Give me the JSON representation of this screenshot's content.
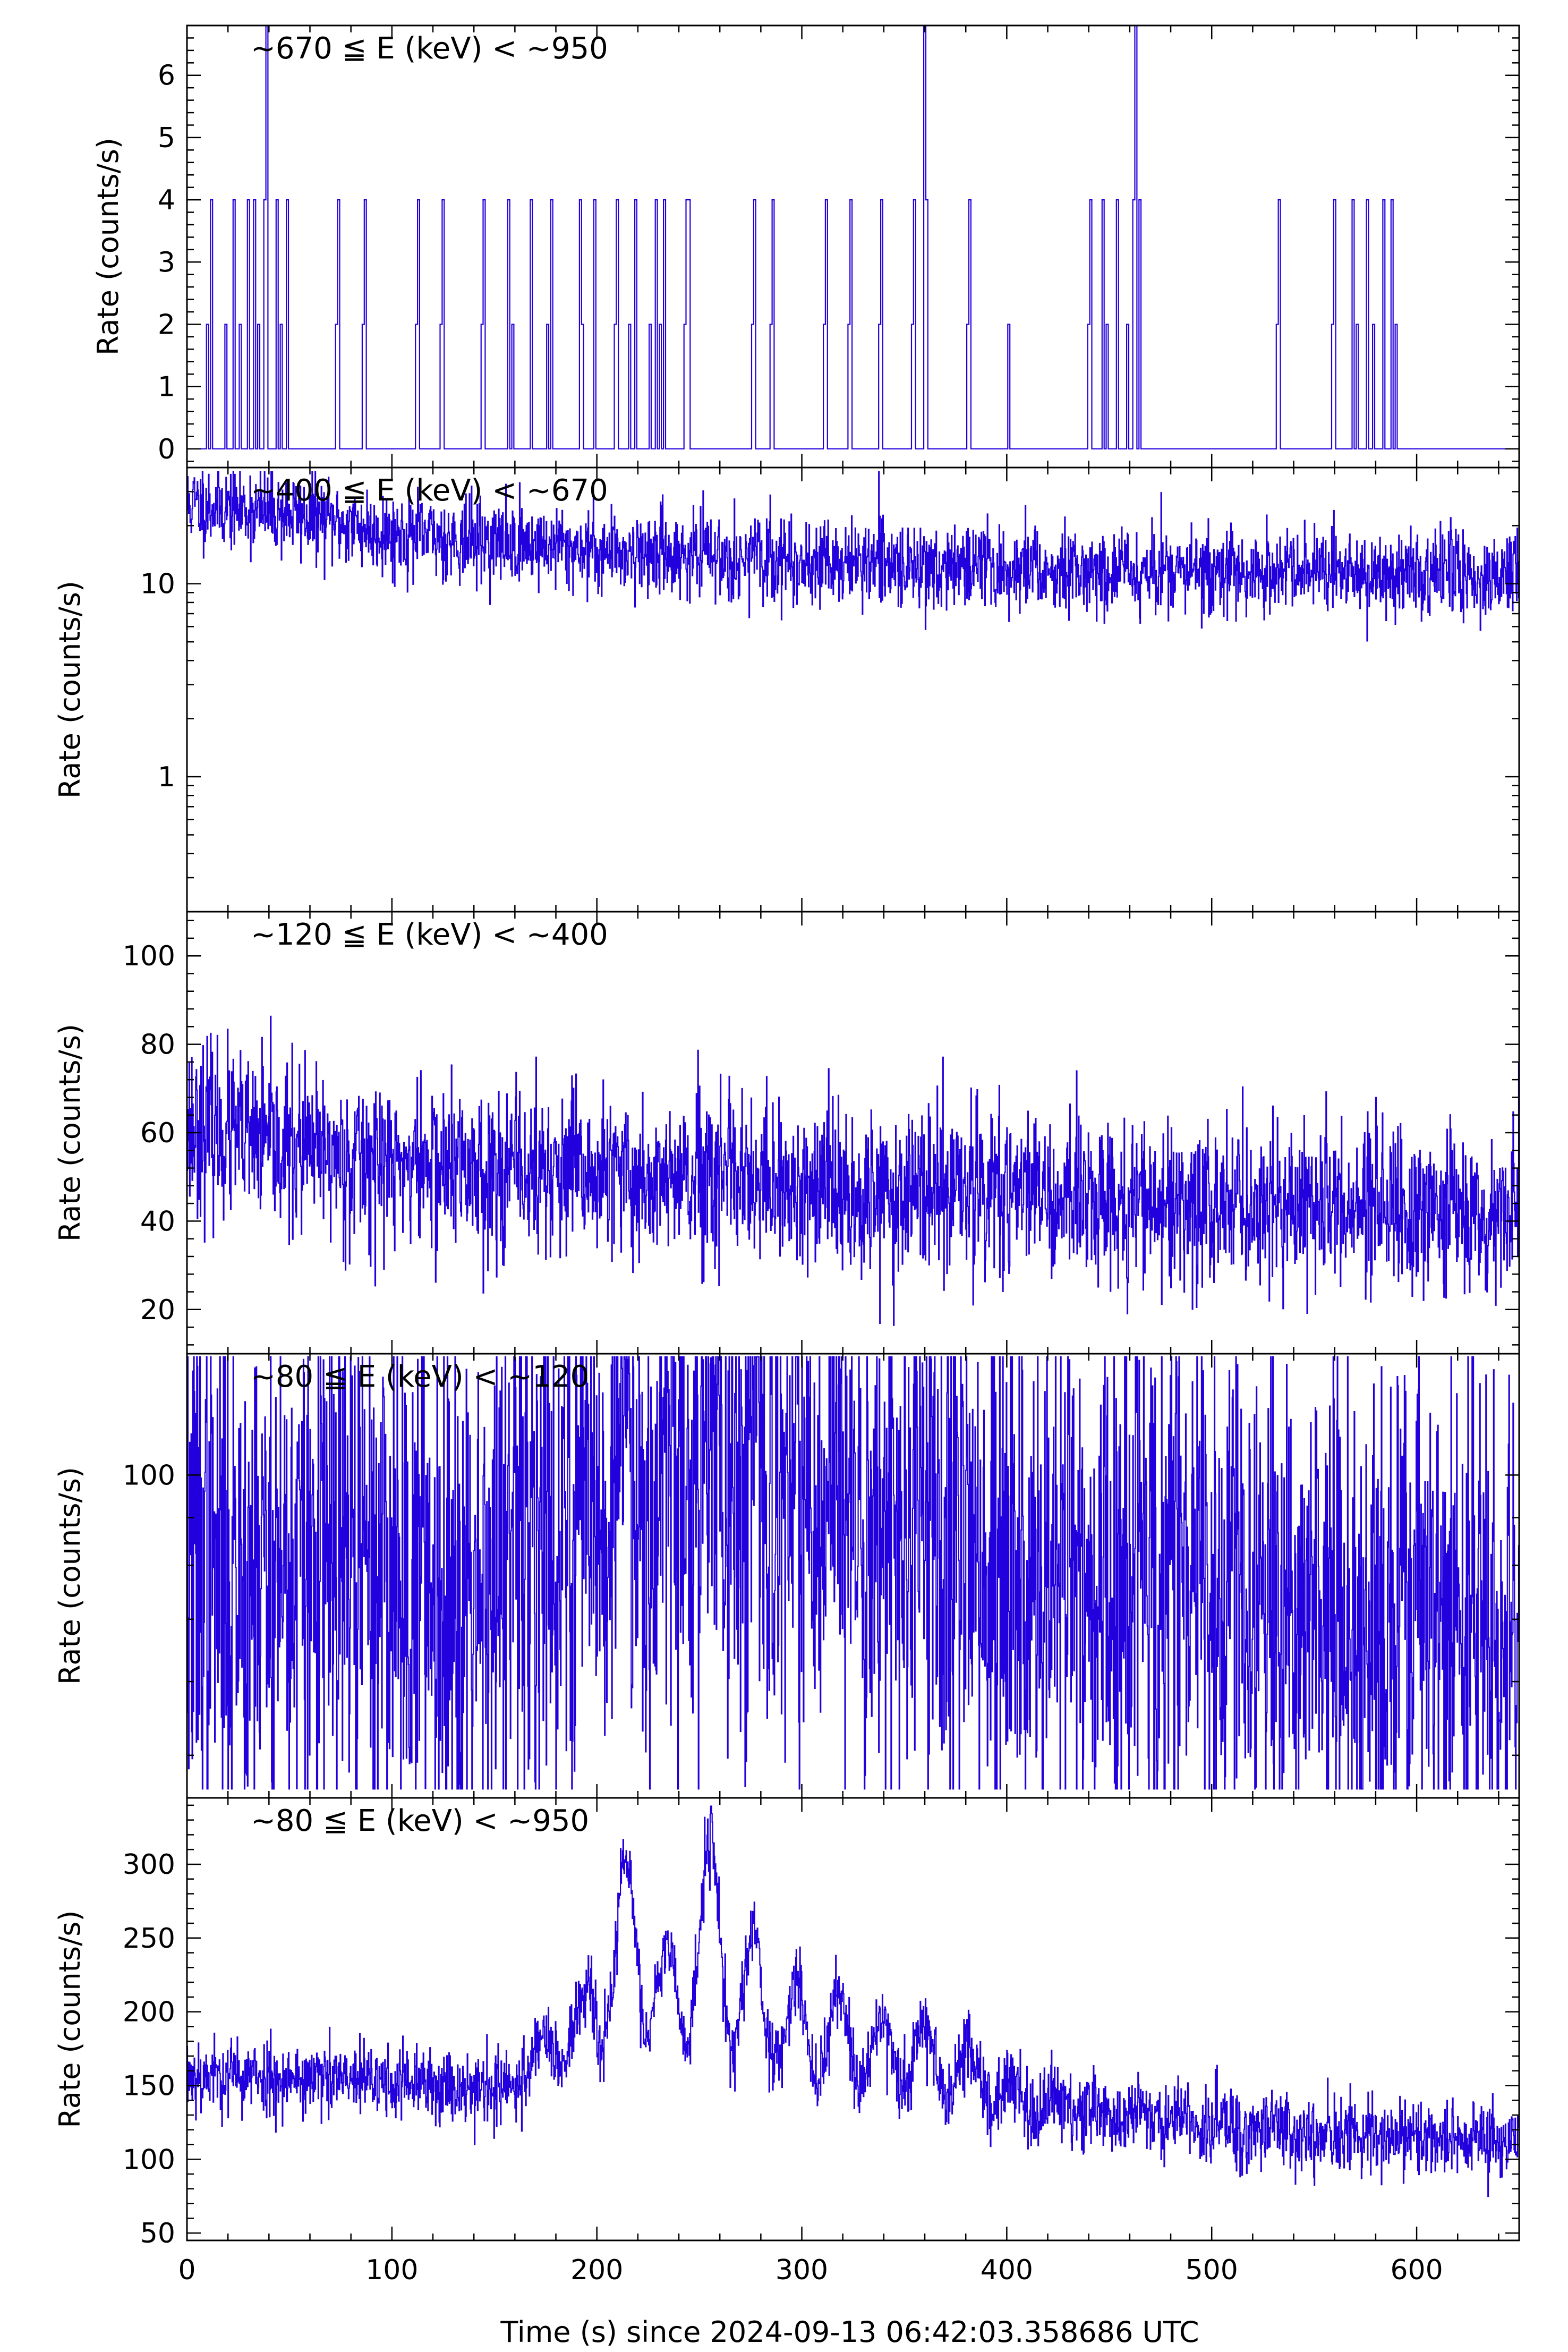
{
  "figure": {
    "xlabel": "Time (s) since 2024-09-13 06:42:03.358686 UTC",
    "x_tick_labels": [
      "0",
      "100",
      "200",
      "300",
      "400",
      "500",
      "600"
    ],
    "line_color": "#2200dd",
    "frame_color": "#000000"
  },
  "chart_data": [
    {
      "type": "line",
      "title": "~670 ≦ E (keV) < ~950",
      "ylabel": "Rate (counts/s)",
      "yscale": "linear",
      "ylim": [
        -0.3,
        6.8
      ],
      "xlim": [
        0,
        650
      ],
      "y_tick_labels": [
        "0",
        "1",
        "2",
        "3",
        "4",
        "5",
        "6"
      ],
      "y_tick_values": [
        0,
        1,
        2,
        3,
        4,
        5,
        6
      ],
      "signal": {
        "kind": "sparse",
        "spikes": [
          [
            10,
            2
          ],
          [
            12,
            4
          ],
          [
            19,
            2
          ],
          [
            23,
            4
          ],
          [
            26,
            2
          ],
          [
            30,
            4
          ],
          [
            33,
            4
          ],
          [
            35,
            2
          ],
          [
            38,
            4
          ],
          [
            39,
            6.8
          ],
          [
            44,
            4
          ],
          [
            46,
            2
          ],
          [
            49,
            4
          ],
          [
            73,
            2
          ],
          [
            74,
            4
          ],
          [
            86,
            2
          ],
          [
            87,
            4
          ],
          [
            112,
            2
          ],
          [
            113,
            4
          ],
          [
            124,
            2
          ],
          [
            125,
            4
          ],
          [
            144,
            2
          ],
          [
            145,
            4
          ],
          [
            157,
            4
          ],
          [
            159,
            2
          ],
          [
            168,
            4
          ],
          [
            176,
            2
          ],
          [
            178,
            4
          ],
          [
            192,
            4
          ],
          [
            193,
            2
          ],
          [
            199,
            4
          ],
          [
            209,
            2
          ],
          [
            210,
            4
          ],
          [
            216,
            2
          ],
          [
            219,
            4
          ],
          [
            226,
            2
          ],
          [
            229,
            4
          ],
          [
            231,
            2
          ],
          [
            233,
            4
          ],
          [
            243,
            2
          ],
          [
            244,
            4
          ],
          [
            245,
            4
          ],
          [
            276,
            2
          ],
          [
            277,
            4
          ],
          [
            285,
            2
          ],
          [
            286,
            4
          ],
          [
            311,
            2
          ],
          [
            312,
            4
          ],
          [
            323,
            2
          ],
          [
            324,
            4
          ],
          [
            338,
            2
          ],
          [
            339,
            4
          ],
          [
            354,
            2
          ],
          [
            355,
            4
          ],
          [
            360,
            6.8
          ],
          [
            361,
            4
          ],
          [
            381,
            2
          ],
          [
            382,
            4
          ],
          [
            401,
            2
          ],
          [
            440,
            2
          ],
          [
            441,
            4
          ],
          [
            447,
            4
          ],
          [
            449,
            2
          ],
          [
            454,
            4
          ],
          [
            459,
            2
          ],
          [
            462,
            4
          ],
          [
            463,
            6.8
          ],
          [
            465,
            4
          ],
          [
            532,
            2
          ],
          [
            533,
            4
          ],
          [
            559,
            2
          ],
          [
            560,
            4
          ],
          [
            569,
            4
          ],
          [
            571,
            2
          ],
          [
            576,
            4
          ],
          [
            579,
            2
          ],
          [
            584,
            4
          ],
          [
            588,
            4
          ],
          [
            590,
            2
          ]
        ]
      }
    },
    {
      "type": "line",
      "title": "~400 ≦ E (keV) < ~670",
      "ylabel": "Rate (counts/s)",
      "yscale": "log",
      "ylim": [
        0.2,
        40
      ],
      "xlim": [
        0,
        650
      ],
      "y_tick_labels": [
        "1",
        "10"
      ],
      "y_tick_values": [
        1,
        10
      ],
      "signal": {
        "kind": "noise",
        "base": [
          [
            0,
            26
          ],
          [
            50,
            23
          ],
          [
            100,
            18
          ],
          [
            200,
            15
          ],
          [
            300,
            13
          ],
          [
            400,
            12
          ],
          [
            500,
            11.5
          ],
          [
            650,
            11
          ]
        ],
        "noise": 0.25,
        "floor": 1.2,
        "cap": 38,
        "log": true,
        "seed": 11
      }
    },
    {
      "type": "line",
      "title": "~120 ≦ E (keV) < ~400",
      "ylabel": "Rate (counts/s)",
      "yscale": "linear",
      "ylim": [
        10,
        110
      ],
      "xlim": [
        0,
        650
      ],
      "y_tick_labels": [
        "20",
        "40",
        "60",
        "80",
        "100"
      ],
      "y_tick_values": [
        20,
        40,
        60,
        80,
        100
      ],
      "signal": {
        "kind": "noise",
        "base": [
          [
            0,
            62
          ],
          [
            50,
            56
          ],
          [
            100,
            53
          ],
          [
            200,
            50
          ],
          [
            300,
            47
          ],
          [
            400,
            46
          ],
          [
            500,
            44
          ],
          [
            650,
            42
          ]
        ],
        "noise": 9.5,
        "floor": 11,
        "cap": 109,
        "log": false,
        "seed": 23
      }
    },
    {
      "type": "line",
      "title": "~80 ≦ E (keV) < ~120",
      "ylabel": "Rate (counts/s)",
      "yscale": "log",
      "ylim": [
        45,
        135
      ],
      "xlim": [
        0,
        650
      ],
      "y_tick_labels": [
        "100"
      ],
      "y_tick_values": [
        100
      ],
      "signal": {
        "kind": "oscillation",
        "base": [
          [
            0,
            80
          ],
          [
            150,
            78
          ],
          [
            300,
            74
          ],
          [
            450,
            72
          ],
          [
            650,
            70
          ]
        ],
        "peaks_t": [
          174,
          194,
          214,
          234,
          255,
          276,
          297,
          318,
          339,
          360,
          381,
          402,
          423,
          444,
          465,
          486,
          507,
          528
        ],
        "peaks_amp": [
          18,
          28,
          42,
          36,
          52,
          40,
          30,
          28,
          24,
          22,
          18,
          10,
          8,
          6,
          5,
          4,
          3,
          3
        ],
        "noise": 5.5,
        "log": true,
        "floor": 46,
        "cap": 134,
        "seed": 37
      }
    },
    {
      "type": "line",
      "title": "~80 ≦ E (keV) < ~950",
      "ylabel": "Rate (counts/s)",
      "yscale": "linear",
      "ylim": [
        45,
        345
      ],
      "xlim": [
        0,
        650
      ],
      "y_tick_labels": [
        "50",
        "100",
        "150",
        "200",
        "250",
        "300"
      ],
      "y_tick_values": [
        50,
        100,
        150,
        200,
        250,
        300
      ],
      "signal": {
        "kind": "oscillation",
        "base": [
          [
            0,
            158
          ],
          [
            100,
            152
          ],
          [
            200,
            145
          ],
          [
            300,
            135
          ],
          [
            400,
            125
          ],
          [
            500,
            118
          ],
          [
            650,
            112
          ]
        ],
        "peaks_t": [
          174,
          194,
          214,
          234,
          255,
          276,
          297,
          318,
          339,
          360,
          381,
          402,
          423,
          444,
          465,
          486,
          507,
          528
        ],
        "peaks_amp": [
          40,
          70,
          160,
          110,
          180,
          120,
          85,
          80,
          65,
          65,
          50,
          30,
          20,
          15,
          12,
          10,
          8,
          8
        ],
        "noise": 13,
        "log": false,
        "floor": 52,
        "cap": 340,
        "seed": 53
      }
    }
  ]
}
